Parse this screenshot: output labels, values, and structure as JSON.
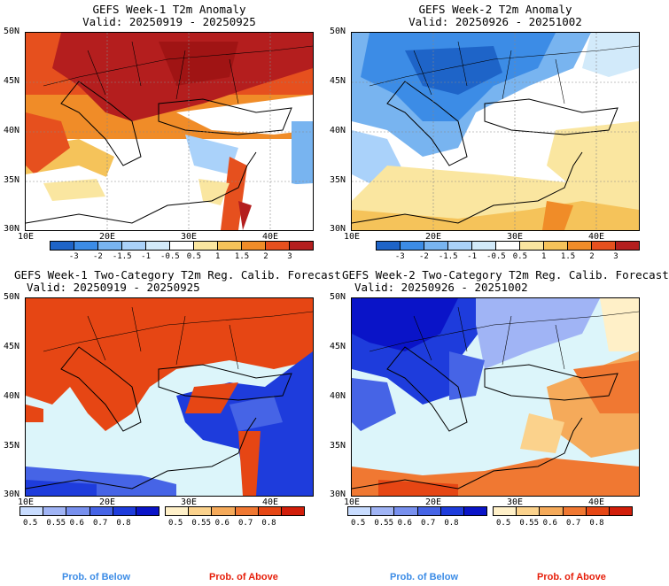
{
  "panels": [
    {
      "title": "GEFS Week-1 T2m Anomaly",
      "valid": "Valid: 20250919 - 20250925"
    },
    {
      "title": "GEFS Week-2 T2m Anomaly",
      "valid": "Valid: 20250926 - 20251002"
    },
    {
      "title": "GEFS Week-1 Two-Category T2m Reg. Calib. Forecast",
      "valid": "Valid: 20250919 - 20250925"
    },
    {
      "title": "GEFS Week-2 Two-Category T2m Reg. Calib. Forecast",
      "valid": "Valid: 20250926 - 20251002"
    }
  ],
  "lat_labels": [
    "50N",
    "45N",
    "40N",
    "35N",
    "30N"
  ],
  "lon_labels": [
    "10E",
    "20E",
    "30E",
    "40E"
  ],
  "anomaly_ticks": [
    "-3",
    "-2",
    "-1.5",
    "-1",
    "-0.5",
    "0.5",
    "1",
    "1.5",
    "2",
    "3"
  ],
  "anomaly_colors": [
    "#1e64c8",
    "#3c8ce6",
    "#78b4f0",
    "#aad2fa",
    "#d2eafa",
    "#ffffff",
    "#fae6a0",
    "#f5c35a",
    "#f08c28",
    "#e6501e",
    "#b41e1e"
  ],
  "below_ticks": [
    "0.5",
    "0.55",
    "0.6",
    "0.7",
    "0.8"
  ],
  "below_colors": [
    "#c8dcff",
    "#a0b4f5",
    "#7890ee",
    "#4664e6",
    "#1e3cdc",
    "#0a14c8"
  ],
  "above_ticks": [
    "0.5",
    "0.55",
    "0.6",
    "0.7",
    "0.8"
  ],
  "above_colors": [
    "#fff0c8",
    "#fbd28c",
    "#f5aa5a",
    "#f07832",
    "#e64614",
    "#d21e0a"
  ],
  "footer": {
    "below": "Prob. of Below",
    "above": "Prob. of Above",
    "below_color": "#3c8ce6",
    "above_color": "#e61e0a"
  }
}
